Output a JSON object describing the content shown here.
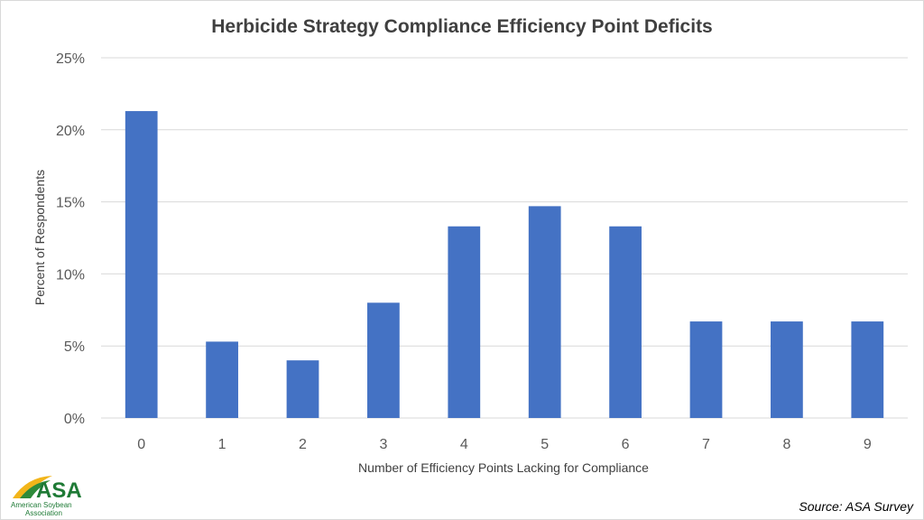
{
  "chart_data": {
    "type": "bar",
    "title": "Herbicide Strategy Compliance Efficiency Point Deficits",
    "xlabel": "Number of Efficiency Points Lacking for Compliance",
    "ylabel": "Percent of Respondents",
    "categories": [
      "0",
      "1",
      "2",
      "3",
      "4",
      "5",
      "6",
      "7",
      "8",
      "9"
    ],
    "values": [
      21.3,
      5.3,
      4.0,
      8.0,
      13.3,
      14.7,
      13.3,
      6.7,
      6.7,
      6.7
    ],
    "ylim": [
      0,
      25
    ],
    "yticks": [
      0,
      5,
      10,
      15,
      20,
      25
    ],
    "ytick_labels": [
      "0%",
      "5%",
      "10%",
      "15%",
      "20%",
      "25%"
    ],
    "grid": true,
    "bar_color": "#4472c4"
  },
  "footer": {
    "source": "Source: ASA Survey",
    "logo_text": "ASA",
    "logo_subtext_1": "American Soybean",
    "logo_subtext_2": "Association"
  }
}
